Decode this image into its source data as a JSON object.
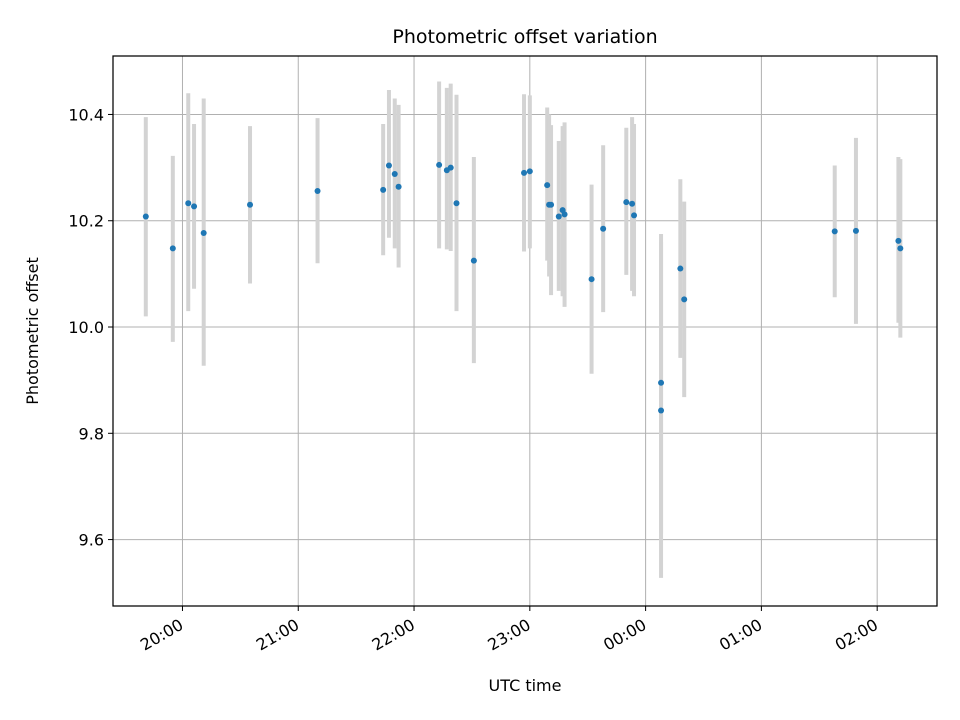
{
  "chart_data": {
    "type": "scatter",
    "title": "Photometric offset variation",
    "xlabel": "UTC time",
    "ylabel": "Photometric offset",
    "x_tick_labels": [
      "20:00",
      "21:00",
      "22:00",
      "23:00",
      "00:00",
      "01:00",
      "02:00"
    ],
    "y_tick_labels": [
      "9.6",
      "9.8",
      "10.0",
      "10.2",
      "10.4"
    ],
    "x_ticks_minutes": [
      0,
      60,
      120,
      180,
      240,
      300,
      360
    ],
    "y_ticks": [
      9.6,
      9.8,
      10.0,
      10.2,
      10.4
    ],
    "xlim_minutes": [
      -36,
      391
    ],
    "ylim": [
      9.475,
      10.51
    ],
    "grid": true,
    "point_color": "#1f77b4",
    "errorbar_color": "#d3d3d3",
    "points": [
      {
        "t": "19:41",
        "y": 10.208,
        "lo": 10.02,
        "hi": 10.395
      },
      {
        "t": "19:55",
        "y": 10.148,
        "lo": 9.972,
        "hi": 10.322
      },
      {
        "t": "20:03",
        "y": 10.233,
        "lo": 10.03,
        "hi": 10.44
      },
      {
        "t": "20:06",
        "y": 10.227,
        "lo": 10.072,
        "hi": 10.382
      },
      {
        "t": "20:11",
        "y": 10.177,
        "lo": 9.927,
        "hi": 10.43
      },
      {
        "t": "20:35",
        "y": 10.23,
        "lo": 10.082,
        "hi": 10.378
      },
      {
        "t": "21:10",
        "y": 10.256,
        "lo": 10.12,
        "hi": 10.393
      },
      {
        "t": "21:44",
        "y": 10.258,
        "lo": 10.135,
        "hi": 10.382
      },
      {
        "t": "21:47",
        "y": 10.304,
        "lo": 10.168,
        "hi": 10.446
      },
      {
        "t": "21:50",
        "y": 10.288,
        "lo": 10.148,
        "hi": 10.43
      },
      {
        "t": "21:52",
        "y": 10.264,
        "lo": 10.112,
        "hi": 10.418
      },
      {
        "t": "22:13",
        "y": 10.305,
        "lo": 10.148,
        "hi": 10.462
      },
      {
        "t": "22:17",
        "y": 10.295,
        "lo": 10.146,
        "hi": 10.45
      },
      {
        "t": "22:19",
        "y": 10.3,
        "lo": 10.143,
        "hi": 10.458
      },
      {
        "t": "22:22",
        "y": 10.233,
        "lo": 10.03,
        "hi": 10.437
      },
      {
        "t": "22:31",
        "y": 10.125,
        "lo": 9.932,
        "hi": 10.32
      },
      {
        "t": "22:57",
        "y": 10.29,
        "lo": 10.142,
        "hi": 10.438
      },
      {
        "t": "23:00",
        "y": 10.293,
        "lo": 10.148,
        "hi": 10.436
      },
      {
        "t": "23:09",
        "y": 10.267,
        "lo": 10.125,
        "hi": 10.413
      },
      {
        "t": "23:10",
        "y": 10.23,
        "lo": 10.095,
        "hi": 10.4
      },
      {
        "t": "23:11",
        "y": 10.23,
        "lo": 10.06,
        "hi": 10.38
      },
      {
        "t": "23:15",
        "y": 10.208,
        "lo": 10.068,
        "hi": 10.35
      },
      {
        "t": "23:17",
        "y": 10.22,
        "lo": 10.058,
        "hi": 10.378
      },
      {
        "t": "23:18",
        "y": 10.212,
        "lo": 10.038,
        "hi": 10.385
      },
      {
        "t": "23:32",
        "y": 10.09,
        "lo": 9.912,
        "hi": 10.268
      },
      {
        "t": "23:38",
        "y": 10.185,
        "lo": 10.028,
        "hi": 10.342
      },
      {
        "t": "23:50",
        "y": 10.235,
        "lo": 10.098,
        "hi": 10.375
      },
      {
        "t": "23:53",
        "y": 10.232,
        "lo": 10.068,
        "hi": 10.395
      },
      {
        "t": "23:54",
        "y": 10.21,
        "lo": 10.058,
        "hi": 10.382
      },
      {
        "t": "00:08",
        "y": 9.895,
        "lo": 9.612,
        "hi": 10.175
      },
      {
        "t": "00:08",
        "y": 9.843,
        "lo": 9.528,
        "hi": 10.16
      },
      {
        "t": "00:18",
        "y": 10.11,
        "lo": 9.942,
        "hi": 10.278
      },
      {
        "t": "00:20",
        "y": 10.052,
        "lo": 9.868,
        "hi": 10.236
      },
      {
        "t": "01:38",
        "y": 10.18,
        "lo": 10.056,
        "hi": 10.304
      },
      {
        "t": "01:49",
        "y": 10.181,
        "lo": 10.006,
        "hi": 10.356
      },
      {
        "t": "02:11",
        "y": 10.162,
        "lo": 10.008,
        "hi": 10.32
      },
      {
        "t": "02:12",
        "y": 10.148,
        "lo": 9.98,
        "hi": 10.316
      }
    ]
  }
}
